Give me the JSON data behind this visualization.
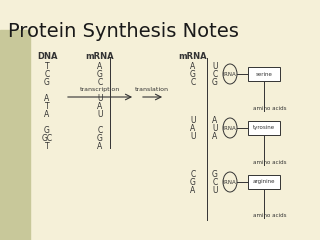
{
  "title": "Protein Synthesis Notes",
  "bg_color": "#f5f0d8",
  "left_bg": "#c8c89a",
  "title_color": "#1a1a1a",
  "dna_label": "DNA",
  "mrna_label1": "mRNA",
  "mrna_label2": "mRNA",
  "dna_col": [
    "T",
    "C",
    "G",
    "",
    "A",
    "T",
    "A",
    "",
    "G",
    "G C",
    "T"
  ],
  "mrna_col1": [
    "A",
    "G",
    "C",
    "",
    "U",
    "A",
    "U",
    "",
    "C",
    "G",
    "A"
  ],
  "mrna_col2_left": [
    "A",
    "G",
    "C",
    "",
    "U",
    "A",
    "U",
    "",
    "C",
    "G",
    "A"
  ],
  "mrna_col2_right": [
    "U",
    "C",
    "G",
    "",
    "A",
    "U",
    "A",
    "",
    "G",
    "C",
    "U"
  ],
  "transcription_label": "transcription",
  "translation_label": "translation",
  "trna_labels": [
    "tRNA",
    "tRNA",
    "tRNA"
  ],
  "aa_labels": [
    "serine",
    "tyrosine",
    "arginine"
  ],
  "aa_text": "amino acids",
  "line_color": "#333333",
  "box_color": "#dddddd"
}
